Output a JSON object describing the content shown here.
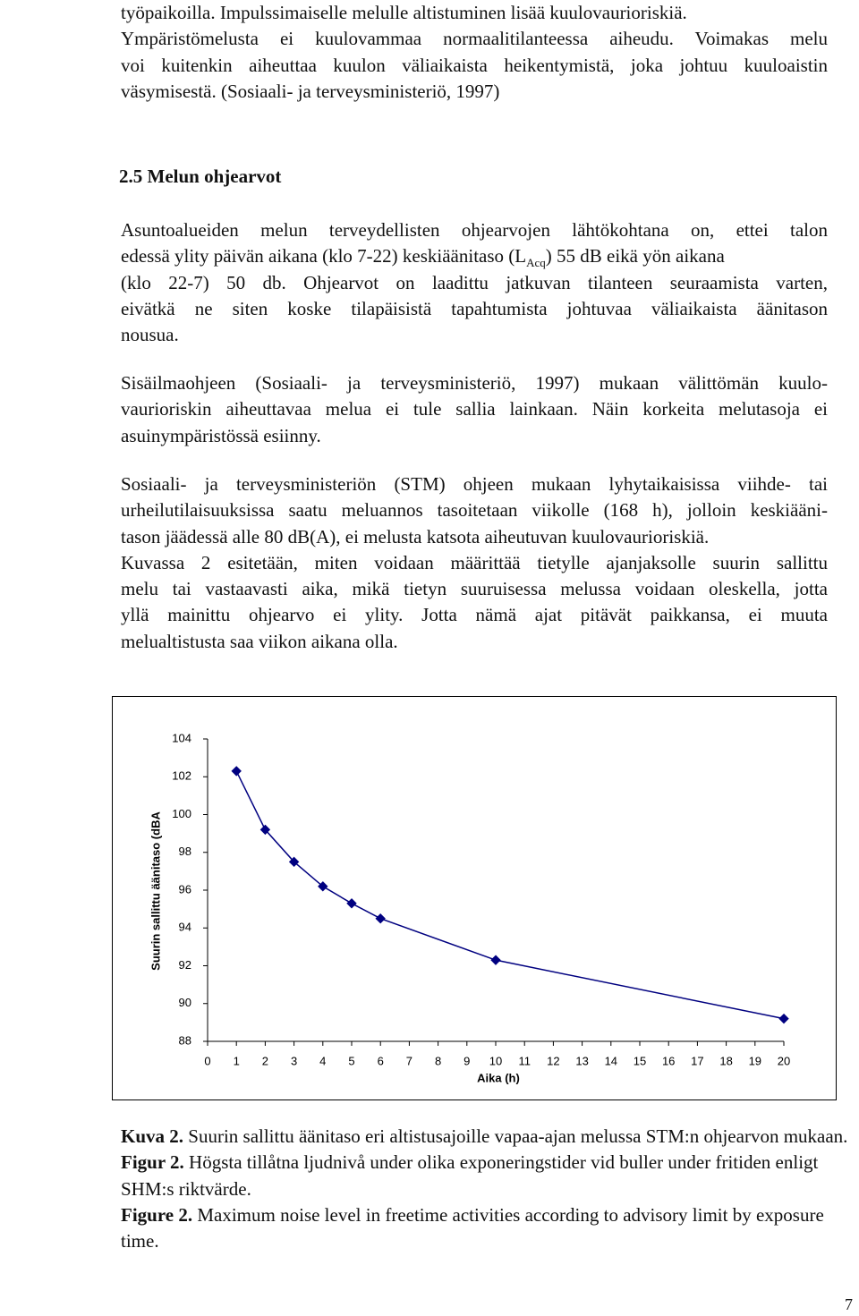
{
  "top_paragraph": {
    "lines": [
      "työpaikoilla. Impulssimaiselle melulle altistuminen lisää kuulovaurioriskiä.",
      "Ympäristömelusta ei kuulovammaa normaalitilanteessa aiheudu. Voimakas melu",
      "voi kuitenkin aiheuttaa kuulon väliaikaista heikentymistä, joka johtuu kuuloaistin",
      "väsymisestä. (Sosiaali- ja terveysministeriö, 1997)"
    ]
  },
  "section_heading": "2.5 Melun ohjearvot",
  "paragraphs": [
    {
      "lines": [
        "Asuntoalueiden melun terveydellisten ohjearvojen lähtökohtana on, ettei talon",
        {
          "text": "edessä ylity päivän aikana (klo 7-22) keskiäänitaso (L",
          "sub": "Acq",
          "after": ") 55 dB eikä yön aikana"
        },
        "(klo 22-7) 50 db. Ohjearvot on laadittu jatkuvan tilanteen seuraamista varten,",
        "eivätkä ne siten koske tilapäisistä tapahtumista johtuvaa väliaikaista äänitason",
        "nousua."
      ]
    },
    {
      "lines": [
        "Sisäilmaohjeen (Sosiaali- ja terveysministeriö, 1997) mukaan välittömän kuulo-",
        "vaurioriskin aiheuttavaa melua ei tule sallia lainkaan. Näin korkeita melutasoja ei",
        "asuinympäristössä esiinny."
      ]
    },
    {
      "lines": [
        "Sosiaali- ja terveysministeriön (STM) ohjeen mukaan lyhytaikaisissa viihde- tai",
        "urheilutilaisuuksissa saatu meluannos tasoitetaan viikolle (168 h), jolloin keskiääni-",
        "tason jäädessä alle 80 dB(A), ei melusta katsota aiheutuvan kuulovaurioriskiä.",
        "Kuvassa 2 esitetään, miten voidaan määrittää tietylle ajanjaksolle suurin sallittu",
        "melu tai vastaavasti aika, mikä tietyn suuruisessa melussa voidaan oleskella, jotta",
        "yllä mainittu ohjearvo ei ylity. Jotta nämä ajat pitävät paikkansa, ei muuta",
        "melualtistusta saa viikon aikana olla."
      ]
    }
  ],
  "chart_data": {
    "type": "line",
    "xlabel": "Aika (h)",
    "ylabel": "Suurin sallittu äänitaso (dBA",
    "x": [
      1,
      2,
      3,
      4,
      5,
      6,
      10,
      20
    ],
    "values": [
      102.3,
      99.2,
      97.5,
      96.2,
      95.3,
      94.5,
      92.3,
      89.2
    ],
    "color": "#000080",
    "xlim": [
      0,
      20
    ],
    "xticks": [
      0,
      1,
      2,
      3,
      4,
      5,
      6,
      7,
      8,
      9,
      10,
      11,
      12,
      13,
      14,
      15,
      16,
      17,
      18,
      19,
      20
    ],
    "ylim": [
      88,
      104
    ],
    "yticks": [
      88,
      90,
      92,
      94,
      96,
      98,
      100,
      102,
      104
    ]
  },
  "captions": [
    {
      "label": "Kuva 2.",
      "text": "Suurin sallittu äänitaso eri altistusajoille vapaa-ajan melussa STM:n ohjearvon mukaan."
    },
    {
      "label": "Figur 2.",
      "text": "Högsta tillåtna ljudnivå under olika exponeringstider vid buller under fritiden enligt SHM:s riktvärde."
    },
    {
      "label": "Figure 2.",
      "text": "Maximum noise level in freetime activities according to advisory limit by exposure time."
    }
  ],
  "page_number": "7"
}
